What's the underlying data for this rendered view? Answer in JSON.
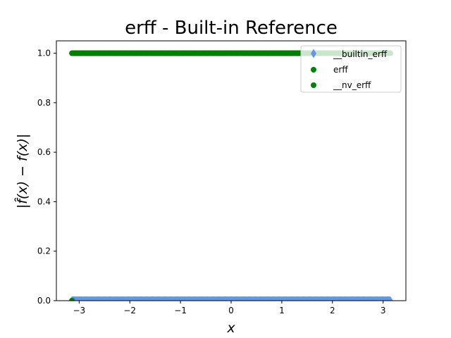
{
  "chart_data": {
    "type": "scatter",
    "title": "erff - Built-in Reference",
    "xlabel": "x",
    "ylabel": "|f̂(x) − f(x)|",
    "xlim": [
      -3.45,
      3.45
    ],
    "ylim": [
      0.0,
      1.05
    ],
    "x_ticks": [
      -3,
      -2,
      -1,
      0,
      1,
      2,
      3
    ],
    "x_tick_labels": [
      "−3",
      "−2",
      "−1",
      "0",
      "1",
      "2",
      "3"
    ],
    "y_ticks": [
      0.0,
      0.2,
      0.4,
      0.6,
      0.8,
      1.0
    ],
    "y_tick_labels": [
      "0.0",
      "0.2",
      "0.4",
      "0.6",
      "0.8",
      "1.0"
    ],
    "grid": false,
    "legend_position": "top-right",
    "series": [
      {
        "name": "__builtin_erff",
        "marker": "thin_diamond",
        "color": "#6495ed",
        "x_range": [
          -3.14159,
          3.14159
        ],
        "y_constant": 0.0
      },
      {
        "name": "erff",
        "marker": "circle",
        "color": "#008000",
        "x_range": [
          -3.14159,
          3.14159
        ],
        "y_constant": 1.0,
        "extra_points": [
          {
            "x": -3.14159,
            "y": 0.0
          }
        ]
      },
      {
        "name": "__nv_erff",
        "marker": "circle",
        "color": "#008000",
        "x_range": [
          -3.14159,
          3.14159
        ],
        "y_constant": 1.0,
        "extra_points": [
          {
            "x": -3.14159,
            "y": 0.0
          }
        ]
      }
    ]
  }
}
